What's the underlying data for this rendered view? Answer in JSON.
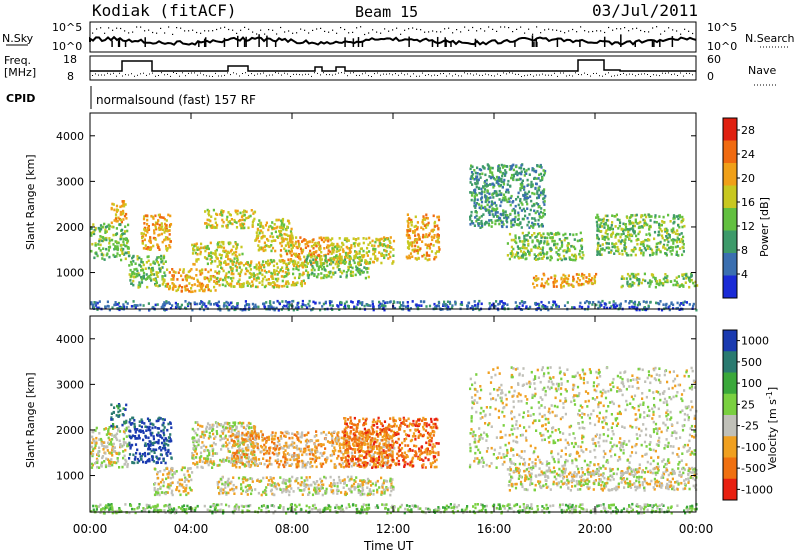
{
  "header": {
    "station": "Kodiak (fitACF)",
    "beam": "Beam 15",
    "date": "03/Jul/2011"
  },
  "top_panels": {
    "nsky_label": "N.Sky",
    "nsearch_label": "N.Search",
    "power_tick_high": "10^5",
    "power_tick_low": "10^0",
    "freq_label_line1": "Freq.",
    "freq_label_line2": "[MHz]",
    "freq_ticks": [
      "18",
      "8"
    ],
    "nave_label": "Nave",
    "nave_ticks": [
      "60",
      "0"
    ],
    "cpid_label": "CPID",
    "cpid_text": "normalsound (fast) 157 RF"
  },
  "colors": {
    "power_scale": [
      "#1a2bd6",
      "#3a6fb0",
      "#3d9a6a",
      "#62c040",
      "#c8c820",
      "#f0a018",
      "#f06a10",
      "#e02010"
    ],
    "velocity_scale": [
      "#1a3ab0",
      "#2a7a70",
      "#3aa83a",
      "#7ad040",
      "#c0c0b8",
      "#f0a020",
      "#f07010",
      "#e82010"
    ]
  },
  "chart_data": [
    {
      "type": "heatmap",
      "name": "power",
      "ylabel": "Slant Range [km]",
      "xlabel": "",
      "xlim": [
        0,
        24
      ],
      "ylim": [
        200,
        4500
      ],
      "x_ticks": [
        "00:00",
        "04:00",
        "08:00",
        "12:00",
        "16:00",
        "20:00",
        "00:00"
      ],
      "y_ticks": [
        1000,
        2000,
        3000,
        4000
      ],
      "colorbar": {
        "label": "Power [dB]",
        "ticks": [
          "4",
          "8",
          "12",
          "16",
          "20",
          "24",
          "28"
        ],
        "range": [
          0,
          30
        ]
      },
      "regions": [
        {
          "t0": 0.0,
          "t1": 1.5,
          "r0": 1300,
          "r1": 2100,
          "level": 3
        },
        {
          "t0": 0.8,
          "t1": 1.4,
          "r0": 2100,
          "r1": 2600,
          "level": 5
        },
        {
          "t0": 1.5,
          "t1": 3.0,
          "r0": 700,
          "r1": 1400,
          "level": 3
        },
        {
          "t0": 2.0,
          "t1": 3.2,
          "r0": 1500,
          "r1": 2300,
          "level": 5
        },
        {
          "t0": 3.0,
          "t1": 5.0,
          "r0": 600,
          "r1": 1100,
          "level": 5
        },
        {
          "t0": 4.0,
          "t1": 6.0,
          "r0": 1200,
          "r1": 1700,
          "level": 4
        },
        {
          "t0": 4.5,
          "t1": 6.5,
          "r0": 2000,
          "r1": 2400,
          "level": 4
        },
        {
          "t0": 5.0,
          "t1": 8.5,
          "r0": 700,
          "r1": 1300,
          "level": 4
        },
        {
          "t0": 6.5,
          "t1": 8.0,
          "r0": 1500,
          "r1": 2200,
          "level": 4
        },
        {
          "t0": 7.5,
          "t1": 9.5,
          "r0": 1200,
          "r1": 1800,
          "level": 5
        },
        {
          "t0": 8.5,
          "t1": 11.0,
          "r0": 900,
          "r1": 1400,
          "level": 3
        },
        {
          "t0": 9.5,
          "t1": 12.0,
          "r0": 1200,
          "r1": 1800,
          "level": 4
        },
        {
          "t0": 12.5,
          "t1": 13.8,
          "r0": 1300,
          "r1": 2300,
          "level": 5
        },
        {
          "t0": 15.0,
          "t1": 18.0,
          "r0": 2000,
          "r1": 3400,
          "level": 2
        },
        {
          "t0": 16.5,
          "t1": 19.5,
          "r0": 1300,
          "r1": 1900,
          "level": 3
        },
        {
          "t0": 17.5,
          "t1": 20.0,
          "r0": 700,
          "r1": 1000,
          "level": 5
        },
        {
          "t0": 20.0,
          "t1": 23.5,
          "r0": 1400,
          "r1": 2300,
          "level": 3
        },
        {
          "t0": 21.0,
          "t1": 24.0,
          "r0": 700,
          "r1": 1000,
          "level": 3
        },
        {
          "t0": 0.0,
          "t1": 24.0,
          "r0": 200,
          "r1": 400,
          "level": 1
        }
      ]
    },
    {
      "type": "heatmap",
      "name": "velocity",
      "ylabel": "Slant Range [km]",
      "xlabel": "Time UT",
      "xlim": [
        0,
        24
      ],
      "ylim": [
        200,
        4500
      ],
      "x_ticks": [
        "00:00",
        "04:00",
        "08:00",
        "12:00",
        "16:00",
        "20:00",
        "00:00"
      ],
      "y_ticks": [
        1000,
        2000,
        3000,
        4000
      ],
      "colorbar": {
        "label": "Velocity [m s^-1]",
        "ticks": [
          "1000",
          "500",
          "100",
          "25",
          "-25",
          "-100",
          "-500",
          "-1000"
        ]
      },
      "regions": [
        {
          "t0": 0.0,
          "t1": 1.5,
          "r0": 1200,
          "r1": 2100,
          "level": 4
        },
        {
          "t0": 0.8,
          "t1": 1.4,
          "r0": 2100,
          "r1": 2600,
          "level": 1
        },
        {
          "t0": 1.5,
          "t1": 3.2,
          "r0": 1300,
          "r1": 2300,
          "level": 0
        },
        {
          "t0": 2.5,
          "t1": 4.0,
          "r0": 600,
          "r1": 1200,
          "level": 4
        },
        {
          "t0": 4.0,
          "t1": 6.5,
          "r0": 1200,
          "r1": 2200,
          "level": 4
        },
        {
          "t0": 5.5,
          "t1": 12.0,
          "r0": 1200,
          "r1": 2000,
          "level": 5
        },
        {
          "t0": 10.0,
          "t1": 13.8,
          "r0": 1200,
          "r1": 2300,
          "level": 6
        },
        {
          "t0": 5.0,
          "t1": 12.0,
          "r0": 600,
          "r1": 1000,
          "level": 4
        },
        {
          "t0": 15.0,
          "t1": 24.0,
          "r0": 1200,
          "r1": 3400,
          "level": 4
        },
        {
          "t0": 16.5,
          "t1": 24.0,
          "r0": 700,
          "r1": 1200,
          "level": 4
        },
        {
          "t0": 0.0,
          "t1": 24.0,
          "r0": 200,
          "r1": 400,
          "level": 3
        }
      ]
    }
  ]
}
